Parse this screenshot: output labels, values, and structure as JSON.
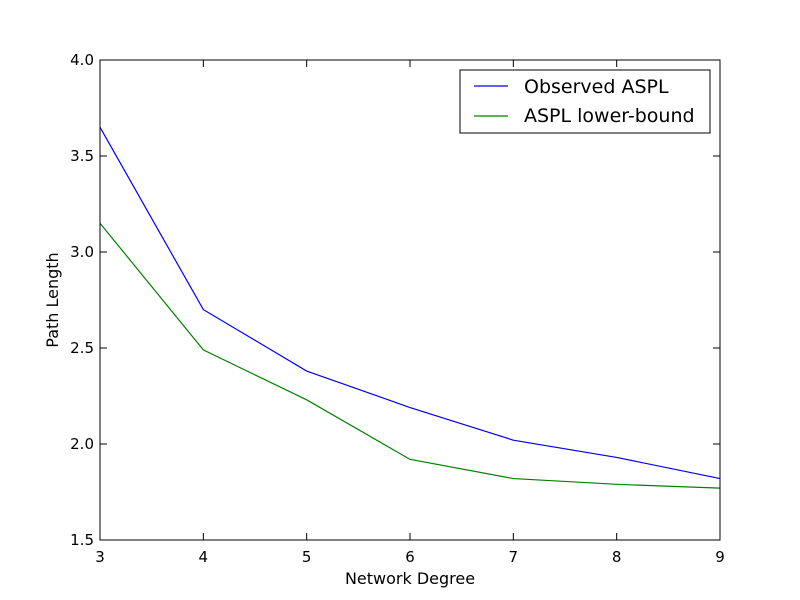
{
  "chart_data": {
    "type": "line",
    "title": "",
    "xlabel": "Network Degree",
    "ylabel": "Path Length",
    "x": [
      3,
      4,
      5,
      6,
      7,
      8,
      9
    ],
    "xlim": [
      3,
      9
    ],
    "ylim": [
      1.5,
      4.0
    ],
    "xticks": [
      "3",
      "4",
      "5",
      "6",
      "7",
      "8",
      "9"
    ],
    "yticks": [
      "1.5",
      "2.0",
      "2.5",
      "3.0",
      "3.5",
      "4.0"
    ],
    "grid": false,
    "legend_position": "top-right",
    "series": [
      {
        "name": "Observed ASPL",
        "color": "#0000ff",
        "values": [
          3.65,
          2.7,
          2.38,
          2.19,
          2.02,
          1.93,
          1.82
        ]
      },
      {
        "name": "ASPL lower-bound",
        "color": "#008000",
        "values": [
          3.15,
          2.49,
          2.23,
          1.92,
          1.82,
          1.79,
          1.77
        ]
      }
    ]
  }
}
